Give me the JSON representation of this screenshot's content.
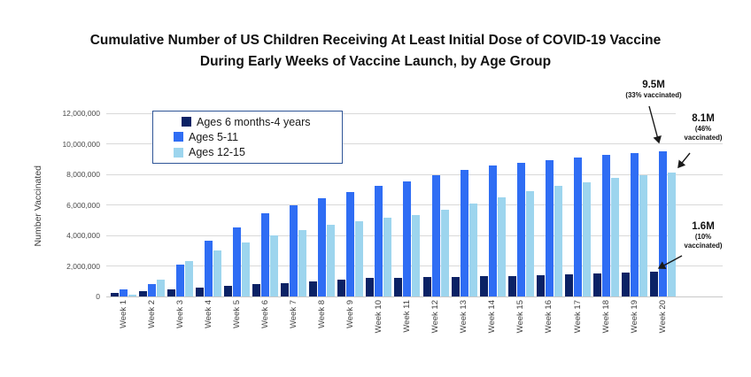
{
  "title": {
    "line1": "Cumulative Number of US Children Receiving At Least Initial Dose of COVID-19 Vaccine",
    "line2": "During Early Weeks of Vaccine Launch, by Age Group"
  },
  "y_axis": {
    "label": "Number Vaccinated",
    "ticks": [
      "0",
      "2,000,000",
      "4,000,000",
      "6,000,000",
      "8,000,000",
      "10,000,000",
      "12,000,000"
    ]
  },
  "legend": {
    "items": [
      {
        "label": "Ages 6 months-4 years",
        "color": "#0b2265"
      },
      {
        "label": "Ages 5-11",
        "color": "#2f6df4"
      },
      {
        "label": "Ages 12-15",
        "color": "#9dd5ee"
      }
    ],
    "border_color": "#2f5597"
  },
  "annotations": [
    {
      "value": "9.5M",
      "detail": "(33% vaccinated)",
      "points_to": "Week 20 Ages 5-11 bar"
    },
    {
      "value": "8.1M",
      "detail": "(46% vaccinated)",
      "points_to": "Week 20 Ages 12-15 bar"
    },
    {
      "value": "1.6M",
      "detail": "(10% vaccinated)",
      "points_to": "Week 20 Ages 6 months-4 years bar"
    }
  ],
  "chart_data": {
    "type": "bar",
    "title": "Cumulative Number of US Children Receiving At Least Initial Dose of COVID-19 Vaccine During Early Weeks of Vaccine Launch, by Age Group",
    "categories": [
      "Week 1",
      "Week 2",
      "Week 3",
      "Week 4",
      "Week 5",
      "Week 6",
      "Week 7",
      "Week 8",
      "Week 9",
      "Week 10",
      "Week 11",
      "Week 12",
      "Week 13",
      "Week 14",
      "Week 15",
      "Week 16",
      "Week 17",
      "Week 18",
      "Week 19",
      "Week 20"
    ],
    "series": [
      {
        "name": "Ages 6 months-4 years",
        "color": "#0b2265",
        "values": [
          250000,
          350000,
          450000,
          600000,
          700000,
          800000,
          900000,
          1000000,
          1100000,
          1200000,
          1200000,
          1250000,
          1300000,
          1350000,
          1350000,
          1400000,
          1450000,
          1500000,
          1550000,
          1600000
        ]
      },
      {
        "name": "Ages 5-11",
        "color": "#2f6df4",
        "values": [
          450000,
          800000,
          2100000,
          3650000,
          4500000,
          5450000,
          6000000,
          6450000,
          6850000,
          7250000,
          7550000,
          7950000,
          8300000,
          8600000,
          8750000,
          8950000,
          9100000,
          9250000,
          9400000,
          9500000
        ]
      },
      {
        "name": "Ages 12-15",
        "color": "#9dd5ee",
        "values": [
          100000,
          1100000,
          2350000,
          3000000,
          3550000,
          4000000,
          4350000,
          4700000,
          4950000,
          5150000,
          5350000,
          5700000,
          6100000,
          6500000,
          6900000,
          7250000,
          7500000,
          7750000,
          7950000,
          8100000
        ]
      }
    ],
    "xlabel": "",
    "ylabel": "Number Vaccinated",
    "ylim": [
      0,
      12000000
    ],
    "ytick_step": 2000000,
    "grid": true,
    "legend_position": "top-left-inside"
  }
}
